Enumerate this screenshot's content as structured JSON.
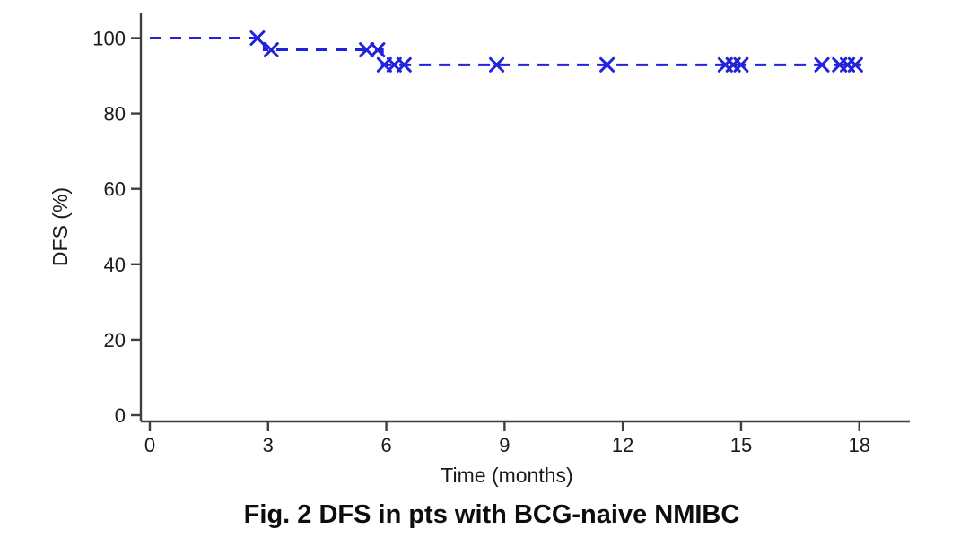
{
  "figure": {
    "caption": "Fig. 2 DFS in pts with BCG-naive NMIBC"
  },
  "chart_data": {
    "type": "line",
    "subtype": "kaplan_meier_step",
    "title": "Fig. 2 DFS in pts with BCG-naive NMIBC",
    "xlabel": "Time (months)",
    "ylabel": "DFS (%)",
    "xlim": [
      0,
      19.3
    ],
    "ylim": [
      0,
      104
    ],
    "xticks": [
      0,
      3,
      6,
      9,
      12,
      15,
      18
    ],
    "yticks": [
      0,
      20,
      40,
      60,
      80,
      100
    ],
    "grid": false,
    "legend": "none",
    "line_color": "#2222dd",
    "line_style": "dashed",
    "marker": "x-censor",
    "axis_color": "#3f3f3f",
    "text_color": "#1a1a1a",
    "series": [
      {
        "name": "DFS",
        "step_points": [
          [
            0,
            100
          ],
          [
            2.9,
            100
          ],
          [
            2.9,
            96.9
          ],
          [
            5.9,
            96.9
          ],
          [
            5.9,
            92.9
          ],
          [
            18.05,
            92.9
          ]
        ],
        "censor_marks": [
          [
            2.73,
            100
          ],
          [
            3.08,
            96.9
          ],
          [
            5.5,
            96.9
          ],
          [
            5.78,
            96.9
          ],
          [
            5.95,
            92.9
          ],
          [
            6.2,
            92.9
          ],
          [
            6.45,
            92.9
          ],
          [
            8.8,
            92.9
          ],
          [
            11.6,
            92.9
          ],
          [
            14.6,
            92.9
          ],
          [
            14.8,
            92.9
          ],
          [
            15.0,
            92.9
          ],
          [
            17.05,
            92.9
          ],
          [
            17.5,
            92.9
          ],
          [
            17.7,
            92.9
          ],
          [
            17.9,
            92.9
          ]
        ]
      }
    ]
  }
}
